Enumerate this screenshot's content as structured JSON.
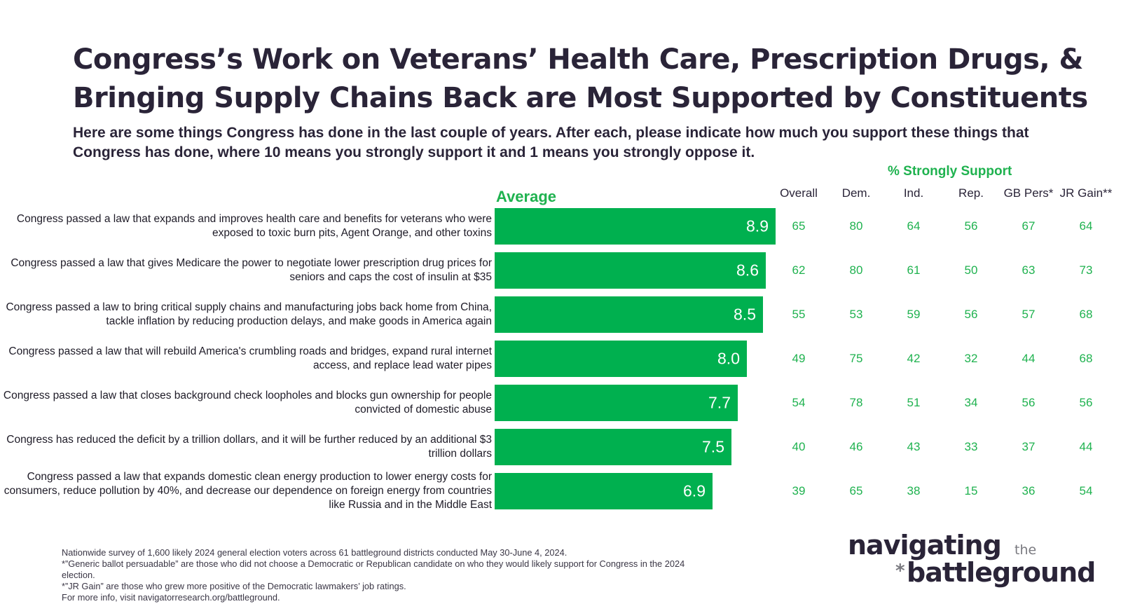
{
  "title": "Congress’s Work on Veterans’ Health Care, Prescription Drugs, & Bringing Supply Chains Back are Most Supported by Constituents",
  "subtitle": "Here are some things Congress has done in the last couple of years. After each, please indicate how much you support these things that Congress has done, where 10 means you strongly support it and 1 means you strongly oppose it.",
  "colors": {
    "bar": "#00b04f",
    "accent_text": "#1fb24f",
    "dark_text": "#2a2438"
  },
  "chart_data": {
    "type": "bar",
    "orientation": "horizontal",
    "average_header": "Average",
    "pct_header": "% Strongly Support",
    "columns": [
      "Overall",
      "Dem.",
      "Ind.",
      "Rep.",
      "GB Pers*",
      "JR Gain**"
    ],
    "xlim": [
      0,
      10
    ],
    "rows": [
      {
        "label": "Congress passed a law that expands and improves health care and benefits for veterans who were exposed to toxic burn pits, Agent Orange, and other toxins",
        "average": 8.9,
        "average_label": "8.9",
        "values": [
          65,
          80,
          64,
          56,
          67,
          64
        ]
      },
      {
        "label": "Congress passed a law that gives Medicare the power to negotiate lower prescription drug prices for seniors and caps the cost of insulin at $35",
        "average": 8.6,
        "average_label": "8.6",
        "values": [
          62,
          80,
          61,
          50,
          63,
          73
        ]
      },
      {
        "label": "Congress passed a law to bring critical supply chains and manufacturing jobs back home from China, tackle inflation by reducing production delays, and make goods in America again",
        "average": 8.5,
        "average_label": "8.5",
        "values": [
          55,
          53,
          59,
          56,
          57,
          68
        ]
      },
      {
        "label": "Congress passed a law that will rebuild America's crumbling roads and bridges, expand rural internet access, and replace lead water pipes",
        "average": 8.0,
        "average_label": "8.0",
        "values": [
          49,
          75,
          42,
          32,
          44,
          68
        ]
      },
      {
        "label": "Congress passed a law that closes background check loopholes and blocks gun ownership for people convicted of domestic abuse",
        "average": 7.7,
        "average_label": "7.7",
        "values": [
          54,
          78,
          51,
          34,
          56,
          56
        ]
      },
      {
        "label": "Congress has reduced the deficit by a trillion dollars, and it will be further reduced by an additional $3 trillion dollars",
        "average": 7.5,
        "average_label": "7.5",
        "values": [
          40,
          46,
          43,
          33,
          37,
          44
        ]
      },
      {
        "label": "Congress passed a law that expands domestic clean energy production to lower energy costs for consumers, reduce pollution by 40%, and decrease our dependence on foreign energy from countries like Russia and in the Middle East",
        "average": 6.9,
        "average_label": "6.9",
        "values": [
          39,
          65,
          38,
          15,
          36,
          54
        ]
      }
    ]
  },
  "footnotes": [
    "Nationwide survey of 1,600 likely 2024 general election voters across 61 battleground districts conducted May 30-June 4, 2024.",
    "*”Generic ballot persuadable” are those who did not choose a Democratic or Republican candidate on who they would likely support for Congress in the 2024 election.",
    "*”JR Gain” are those who grew more positive of the Democratic lawmakers’ job ratings.",
    "For more info, visit navigatorresearch.org/battleground."
  ],
  "logo": {
    "line1": "navigating",
    "small": "the",
    "star": "*",
    "line2": "battleground"
  }
}
